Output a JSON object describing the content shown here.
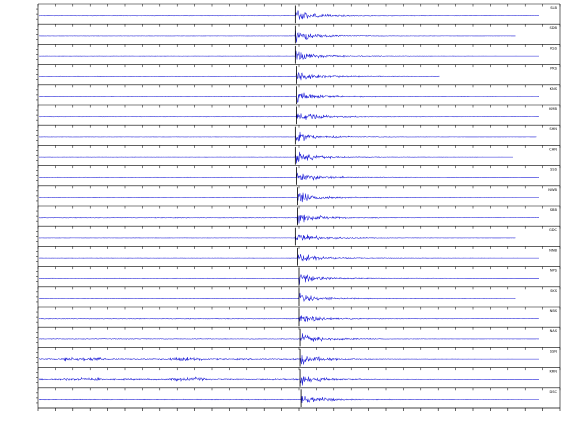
{
  "chart_data": {
    "type": "line",
    "title": "",
    "xlabel": "",
    "ylabel": "",
    "grid": false,
    "trace_color": "#1f1fd6",
    "marker_color": "#000000",
    "panel_count": 20,
    "x_tick_count": 31,
    "pick_time_fraction": 0.5,
    "stations": [
      {
        "code": "SLB",
        "onset_fraction": 0.493,
        "trace_end_fraction": 0.96,
        "noise_level": "low"
      },
      {
        "code": "SDB",
        "onset_fraction": 0.493,
        "trace_end_fraction": 0.915,
        "noise_level": "low"
      },
      {
        "code": "KSS",
        "onset_fraction": 0.493,
        "trace_end_fraction": 0.96,
        "noise_level": "low"
      },
      {
        "code": "PKS",
        "onset_fraction": 0.495,
        "trace_end_fraction": 0.77,
        "noise_level": "low"
      },
      {
        "code": "KNS",
        "onset_fraction": 0.495,
        "trace_end_fraction": 0.96,
        "noise_level": "low"
      },
      {
        "code": "KMB",
        "onset_fraction": 0.495,
        "trace_end_fraction": 0.96,
        "noise_level": "low"
      },
      {
        "code": "SHN",
        "onset_fraction": 0.493,
        "trace_end_fraction": 0.955,
        "noise_level": "low"
      },
      {
        "code": "CHN",
        "onset_fraction": 0.493,
        "trace_end_fraction": 0.91,
        "noise_level": "low"
      },
      {
        "code": "SSS",
        "onset_fraction": 0.495,
        "trace_end_fraction": 0.96,
        "noise_level": "low"
      },
      {
        "code": "NWB",
        "onset_fraction": 0.497,
        "trace_end_fraction": 0.96,
        "noise_level": "low"
      },
      {
        "code": "SBB",
        "onset_fraction": 0.497,
        "trace_end_fraction": 0.96,
        "noise_level": "medium"
      },
      {
        "code": "GDC",
        "onset_fraction": 0.493,
        "trace_end_fraction": 0.915,
        "noise_level": "low"
      },
      {
        "code": "NNB",
        "onset_fraction": 0.497,
        "trace_end_fraction": 0.96,
        "noise_level": "low"
      },
      {
        "code": "NPS",
        "onset_fraction": 0.5,
        "trace_end_fraction": 0.96,
        "noise_level": "low"
      },
      {
        "code": "SKS",
        "onset_fraction": 0.5,
        "trace_end_fraction": 0.915,
        "noise_level": "low"
      },
      {
        "code": "NBS",
        "onset_fraction": 0.5,
        "trace_end_fraction": 0.96,
        "noise_level": "medium"
      },
      {
        "code": "NAS",
        "onset_fraction": 0.502,
        "trace_end_fraction": 0.96,
        "noise_level": "medium"
      },
      {
        "code": "SSN",
        "onset_fraction": 0.502,
        "trace_end_fraction": 0.96,
        "noise_level": "high"
      },
      {
        "code": "KRN",
        "onset_fraction": 0.502,
        "trace_end_fraction": 0.96,
        "noise_level": "high"
      },
      {
        "code": "DSC",
        "onset_fraction": 0.504,
        "trace_end_fraction": 0.96,
        "noise_level": "medium"
      }
    ]
  }
}
